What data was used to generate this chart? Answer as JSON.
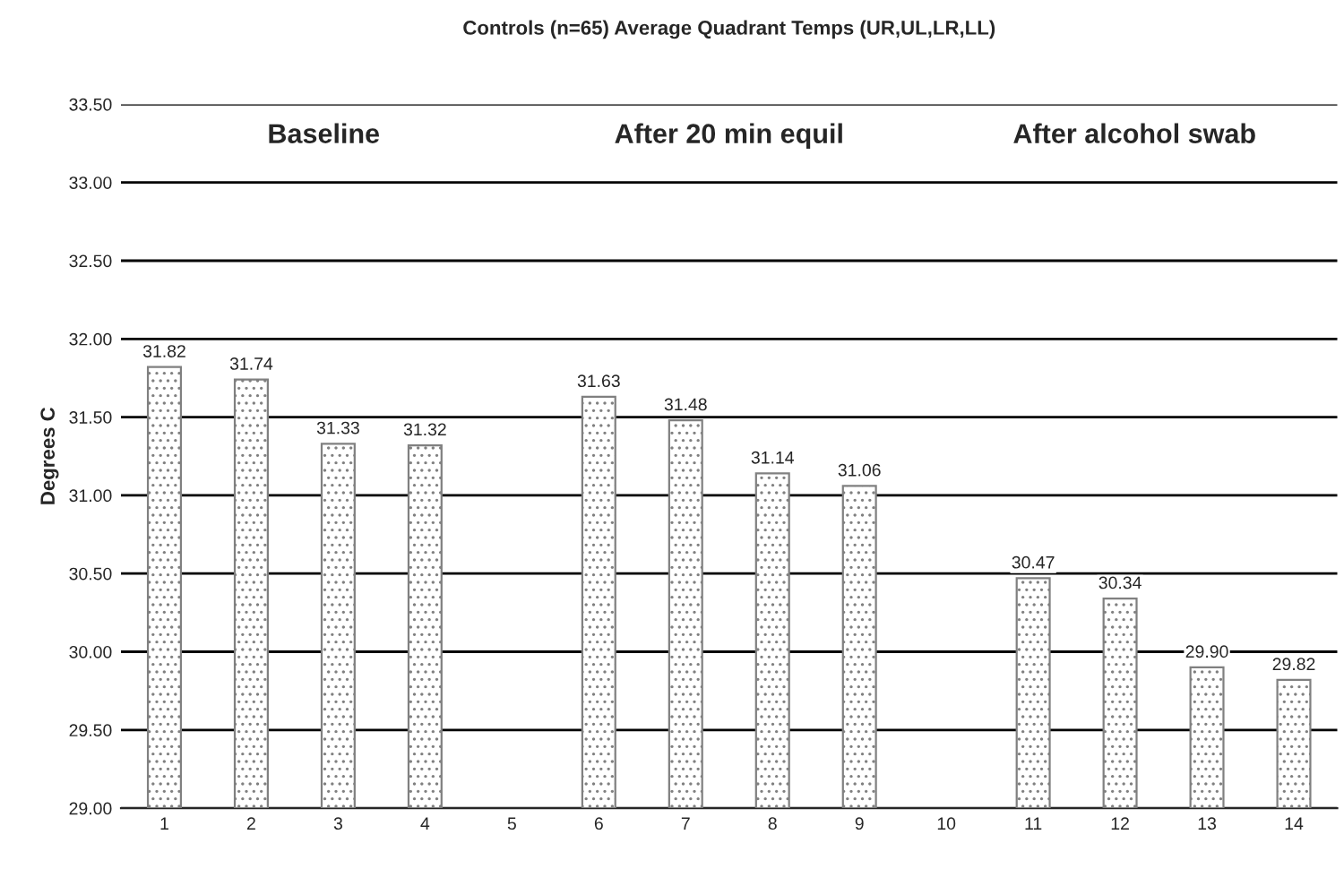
{
  "chart_data": {
    "type": "bar",
    "title": "Controls (n=65) Average Quadrant Temps (UR,UL,LR,LL)",
    "ylabel": "Degrees C",
    "categories": [
      "1",
      "2",
      "3",
      "4",
      "5",
      "6",
      "7",
      "8",
      "9",
      "10",
      "11",
      "12",
      "13",
      "14"
    ],
    "values": [
      31.82,
      31.74,
      31.33,
      31.32,
      null,
      31.63,
      31.48,
      31.14,
      31.06,
      null,
      30.47,
      30.34,
      29.9,
      29.82
    ],
    "color": "#808080",
    "ylim": [
      29,
      33.5
    ],
    "yticks": [
      {
        "value": 29,
        "label": "29.00"
      },
      {
        "value": 29.5,
        "label": "29.50"
      },
      {
        "value": 30,
        "label": "30.00"
      },
      {
        "value": 30.5,
        "label": "30.50"
      },
      {
        "value": 31,
        "label": "31.00"
      },
      {
        "value": 31.5,
        "label": "31.50"
      },
      {
        "value": 32,
        "label": "32.00"
      },
      {
        "value": 32.5,
        "label": "32.50"
      },
      {
        "value": 33,
        "label": "33.00"
      },
      {
        "value": 33.5,
        "label": "33.50"
      }
    ],
    "grid": "y",
    "value_labels": [
      "31.82",
      "31.74",
      "31.33",
      "31.32",
      null,
      "31.63",
      "31.48",
      "31.14",
      "31.06",
      null,
      "30.47",
      "30.34",
      "29.90",
      "29.82"
    ],
    "annotations": [
      "Baseline",
      "After 20 min equil",
      "After alcohol swab"
    ]
  }
}
